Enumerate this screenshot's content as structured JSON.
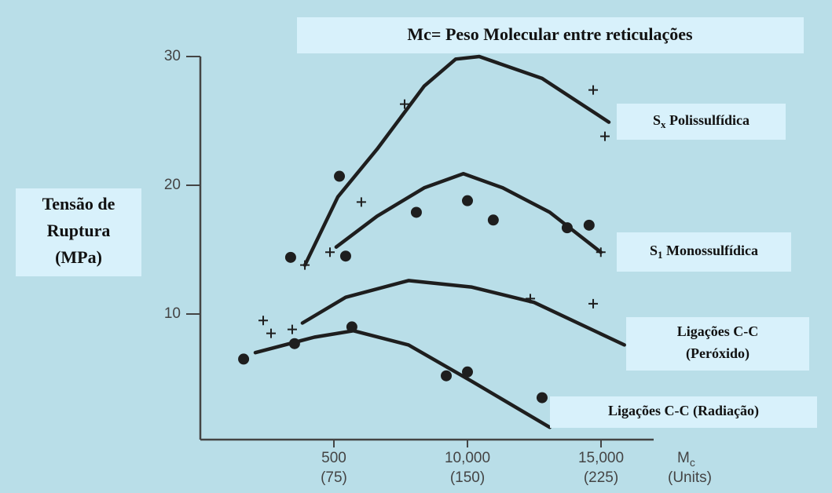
{
  "chart_data": {
    "type": "line",
    "title": "Mc= Peso Molecular entre reticulações",
    "y_label": [
      "Tensão de",
      "Ruptura",
      "(MPa)"
    ],
    "x_label": {
      "main": "M",
      "sub": "c",
      "unit": "(Units)"
    },
    "xlim": [
      0,
      255
    ],
    "ylim": [
      0,
      30
    ],
    "yticks": [
      10,
      20,
      30
    ],
    "xticks": [
      {
        "value": 75,
        "label": "500"
      },
      {
        "value": 150,
        "label": "10,000"
      },
      {
        "value": 225,
        "label": "15,000"
      }
    ],
    "xticks_secondary": [
      {
        "value": 75,
        "label": "(75)"
      },
      {
        "value": 150,
        "label": "(150)"
      },
      {
        "value": 225,
        "label": "(225)"
      }
    ],
    "line_color": "#1e1e1e",
    "series": [
      {
        "label": [
          {
            "sym": "S",
            "sub": "x",
            "text": " Polissulfídica"
          }
        ],
        "x": [
          58.7,
          77.2,
          99.2,
          125.7,
          143.4,
          156.6,
          191.9,
          229.4
        ],
        "y": [
          13.8,
          19.1,
          22.8,
          27.7,
          29.8,
          30.0,
          28.3,
          24.9
        ]
      },
      {
        "label": [
          {
            "sym": "S",
            "sub": "1",
            "text": " Monossulfídica"
          }
        ],
        "x": [
          76.3,
          99.2,
          125.7,
          147.7,
          169.8,
          196.2,
          224.9
        ],
        "y": [
          15.2,
          17.6,
          19.8,
          20.9,
          19.8,
          17.9,
          14.8
        ]
      },
      {
        "label": [
          {
            "text": "Ligações C-C"
          },
          {
            "text": "(Peróxido)"
          }
        ],
        "x": [
          57.3,
          81.6,
          116.9,
          152.1,
          187.4,
          238.1
        ],
        "y": [
          9.3,
          11.3,
          12.6,
          12.1,
          10.9,
          7.6
        ]
      },
      {
        "label": [
          {
            "text": "Ligações C-C (Radiação)"
          }
        ],
        "x": [
          30.9,
          64.0,
          86.0,
          116.9,
          152.1,
          196.2
        ],
        "y": [
          7.0,
          8.2,
          8.7,
          7.6,
          4.8,
          1.2
        ]
      }
    ],
    "markers": [
      {
        "marker": "circle",
        "x": [
          24.3,
          50.7,
          52.9,
          78.1,
          81.6,
          85.1,
          121.3,
          138.1,
          150.0,
          150.0,
          164.5,
          191.9,
          206.0,
          218.3
        ],
        "y": [
          6.5,
          14.4,
          7.7,
          20.7,
          14.5,
          9.0,
          17.9,
          5.2,
          18.8,
          5.5,
          17.3,
          3.5,
          16.7,
          16.9
        ]
      },
      {
        "marker": "plus",
        "x": [
          35.3,
          39.7,
          51.6,
          58.7,
          72.8,
          90.4,
          114.7,
          185.3,
          220.6,
          220.6,
          227.2,
          224.9
        ],
        "y": [
          9.5,
          8.5,
          8.8,
          13.8,
          14.8,
          18.7,
          26.3,
          11.2,
          10.8,
          27.4,
          23.8,
          14.8
        ]
      }
    ]
  }
}
